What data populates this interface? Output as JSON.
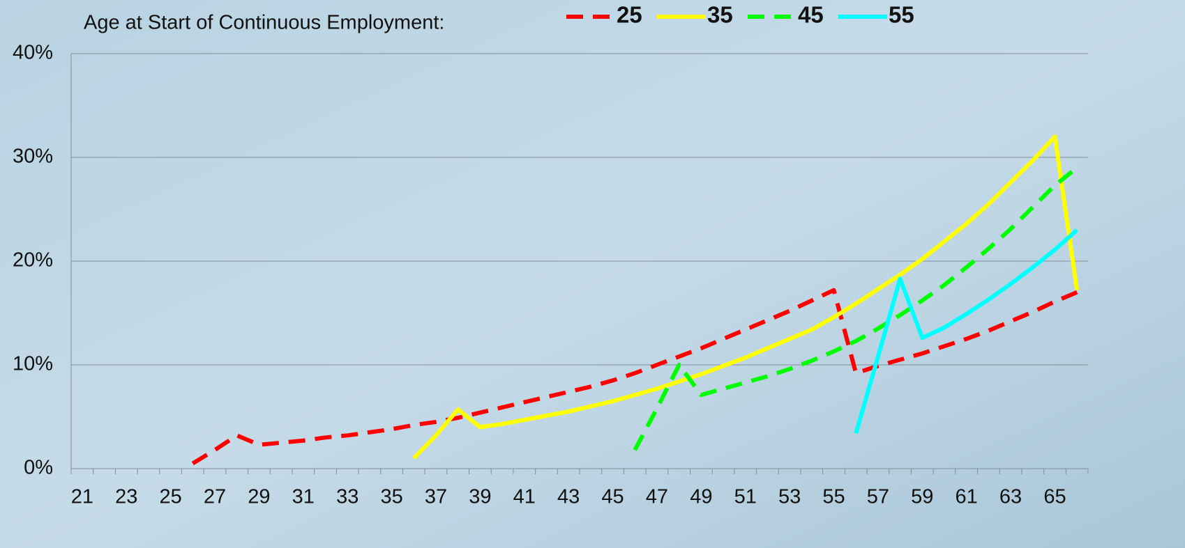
{
  "chart_data": {
    "type": "line",
    "legend_title": "Age at Start of Continuous Employment:",
    "legend_position": "top",
    "grid": true,
    "categories": [
      "21",
      null,
      "23",
      null,
      "25",
      null,
      "27",
      null,
      "29",
      null,
      "31",
      null,
      "33",
      null,
      "35",
      null,
      "37",
      null,
      "39",
      null,
      "41",
      null,
      "43",
      null,
      "45",
      null,
      "47",
      null,
      "49",
      null,
      "51",
      null,
      "53",
      null,
      "55",
      null,
      "57",
      null,
      "59",
      null,
      "61",
      null,
      "63",
      null,
      "65",
      null
    ],
    "ylim": [
      0,
      40
    ],
    "yticks": [
      {
        "value": 0,
        "label": "0%"
      },
      {
        "value": 10,
        "label": "10%"
      },
      {
        "value": 20,
        "label": "20%"
      },
      {
        "value": 30,
        "label": "30%"
      },
      {
        "value": 40,
        "label": "40%"
      }
    ],
    "series": [
      {
        "name": "25",
        "color": "#ff0000",
        "dashed": true,
        "values": [
          null,
          null,
          null,
          null,
          null,
          0.5,
          1.8,
          3.2,
          2.3,
          2.5,
          2.7,
          3.0,
          3.2,
          3.5,
          3.8,
          4.2,
          4.5,
          4.9,
          5.4,
          5.9,
          6.4,
          6.9,
          7.4,
          7.9,
          8.5,
          9.2,
          10.0,
          10.8,
          11.6,
          12.5,
          13.4,
          14.3,
          15.2,
          16.2,
          17.2,
          9.2,
          9.9,
          10.5,
          11.1,
          11.8,
          12.5,
          13.3,
          14.2,
          15.1,
          16.1,
          17.0
        ]
      },
      {
        "name": "35",
        "color": "#ffff00",
        "dashed": false,
        "values": [
          null,
          null,
          null,
          null,
          null,
          null,
          null,
          null,
          null,
          null,
          null,
          null,
          null,
          null,
          null,
          1.0,
          3.2,
          5.7,
          4.0,
          4.3,
          4.7,
          5.1,
          5.5,
          6.0,
          6.5,
          7.1,
          7.7,
          8.4,
          9.1,
          9.9,
          10.7,
          11.6,
          12.5,
          13.4,
          14.6,
          15.9,
          17.3,
          18.7,
          20.2,
          21.9,
          23.6,
          25.5,
          27.6,
          29.7,
          32.0,
          17.2
        ]
      },
      {
        "name": "45",
        "color": "#00ff00",
        "dashed": true,
        "values": [
          null,
          null,
          null,
          null,
          null,
          null,
          null,
          null,
          null,
          null,
          null,
          null,
          null,
          null,
          null,
          null,
          null,
          null,
          null,
          null,
          null,
          null,
          null,
          null,
          null,
          1.8,
          5.8,
          10.0,
          7.1,
          7.7,
          8.3,
          8.9,
          9.6,
          10.4,
          11.3,
          12.3,
          13.5,
          14.8,
          16.2,
          17.7,
          19.4,
          21.2,
          23.1,
          25.2,
          27.3,
          29.0
        ]
      },
      {
        "name": "55",
        "color": "#00ffff",
        "dashed": false,
        "values": [
          null,
          null,
          null,
          null,
          null,
          null,
          null,
          null,
          null,
          null,
          null,
          null,
          null,
          null,
          null,
          null,
          null,
          null,
          null,
          null,
          null,
          null,
          null,
          null,
          null,
          null,
          null,
          null,
          null,
          null,
          null,
          null,
          null,
          null,
          null,
          3.4,
          10.8,
          18.3,
          12.6,
          13.6,
          14.9,
          16.3,
          17.8,
          19.4,
          21.1,
          23.0
        ]
      }
    ]
  }
}
